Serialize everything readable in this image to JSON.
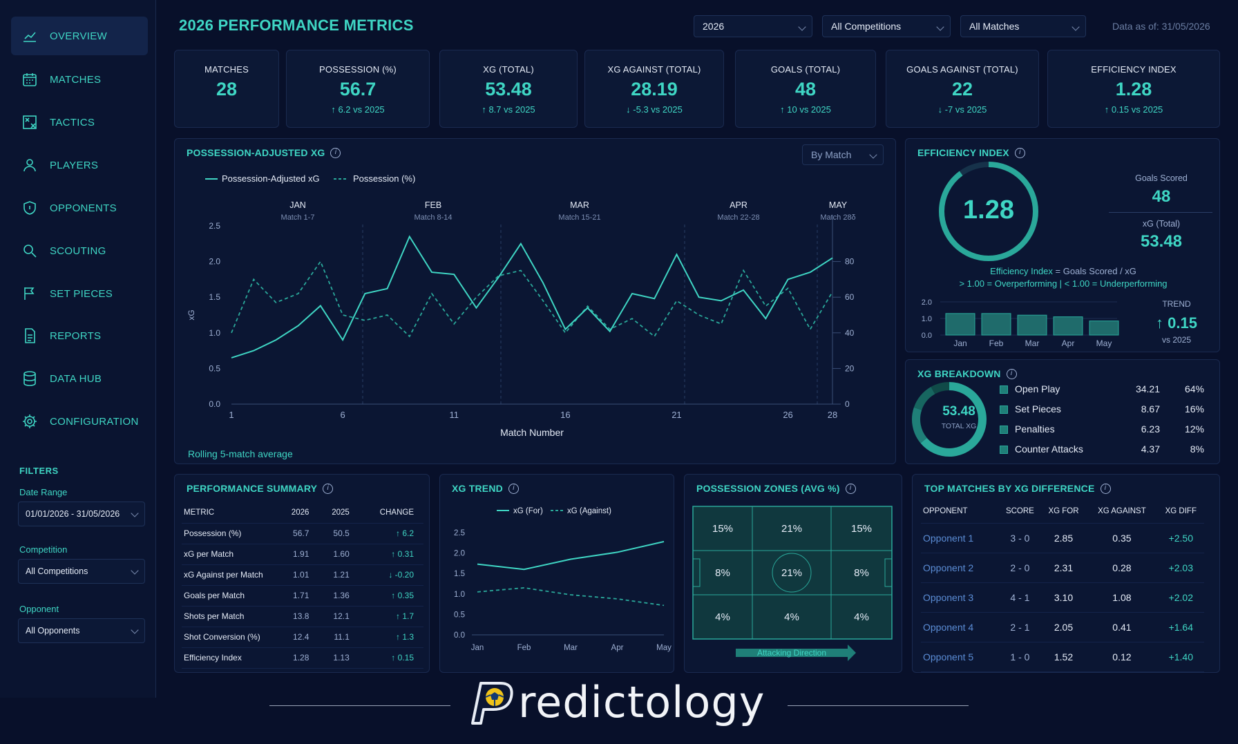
{
  "nav": [
    {
      "label": "OVERVIEW",
      "icon": "line-chart-icon",
      "active": true
    },
    {
      "label": "MATCHES",
      "icon": "calendar-icon"
    },
    {
      "label": "TACTICS",
      "icon": "tactics-board-icon"
    },
    {
      "label": "PLAYERS",
      "icon": "person-icon"
    },
    {
      "label": "OPPONENTS",
      "icon": "shield-icon"
    },
    {
      "label": "SCOUTING",
      "icon": "search-icon"
    },
    {
      "label": "SET PIECES",
      "icon": "flag-icon"
    },
    {
      "label": "REPORTS",
      "icon": "document-icon"
    },
    {
      "label": "DATA HUB",
      "icon": "database-icon"
    },
    {
      "label": "CONFIGURATION",
      "icon": "gear-icon"
    }
  ],
  "filters": {
    "title": "FILTERS",
    "date_label": "Date Range",
    "date_value": "01/01/2026 - 31/05/2026",
    "competition_label": "Competition",
    "competition_value": "All Competitions",
    "opponent_label": "Opponent",
    "opponent_value": "All Opponents"
  },
  "header": {
    "title": "2026 PERFORMANCE METRICS",
    "year": "2026",
    "competitions": "All Competitions",
    "matches": "All Matches",
    "data_as_of": "Data as of: 31/05/2026"
  },
  "kpis": [
    {
      "label": "MATCHES",
      "value": "28",
      "delta": ""
    },
    {
      "label": "POSSESSION (%)",
      "value": "56.7",
      "delta": "↑ 6.2 vs 2025"
    },
    {
      "label": "XG (TOTAL)",
      "value": "53.48",
      "delta": "↑ 8.7 vs 2025"
    },
    {
      "label": "XG AGAINST (TOTAL)",
      "value": "28.19",
      "delta": "↓ -5.3 vs 2025"
    },
    {
      "label": "GOALS (TOTAL)",
      "value": "48",
      "delta": "↑ 10 vs 2025"
    },
    {
      "label": "GOALS AGAINST (TOTAL)",
      "value": "22",
      "delta": "↓ -7 vs 2025"
    },
    {
      "label": "EFFICIENCY INDEX",
      "value": "1.28",
      "delta": "↑ 0.15 vs 2025"
    }
  ],
  "pax": {
    "title": "POSSESSION-ADJUSTED XG",
    "dropdown": "By Match",
    "legend_a": "Possession-Adjusted xG",
    "legend_b": "Possession (%)",
    "months": [
      {
        "name": "JAN",
        "range": "Match 1-7"
      },
      {
        "name": "FEB",
        "range": "Match 8-14"
      },
      {
        "name": "MAR",
        "range": "Match 15-21"
      },
      {
        "name": "APR",
        "range": "Match 22-28"
      },
      {
        "name": "MAY",
        "range": "Match 28δ"
      }
    ],
    "ylabel": "xG",
    "xlabel": "Match Number",
    "footnote": "Rolling 5-match average"
  },
  "efficiency": {
    "title": "EFFICIENCY INDEX",
    "value": "1.28",
    "goals_label": "Goals Scored",
    "goals_value": "48",
    "xg_label": "xG (Total)",
    "xg_value": "53.48",
    "formula_a": "Efficiency Index",
    "formula_b": " = Goals Scored / xG",
    "note": "> 1.00 = Overperforming | < 1.00 = Underperforming",
    "trend_label": "TREND",
    "trend_value": "↑ 0.15",
    "trend_sub": "vs 2025"
  },
  "xg_breakdown": {
    "title": "XG BREAKDOWN",
    "total": "53.48",
    "total_label": "TOTAL XG",
    "rows": [
      {
        "label": "Open Play",
        "value": "34.21",
        "pct": "64%"
      },
      {
        "label": "Set Pieces",
        "value": "8.67",
        "pct": "16%"
      },
      {
        "label": "Penalties",
        "value": "6.23",
        "pct": "12%"
      },
      {
        "label": "Counter Attacks",
        "value": "4.37",
        "pct": "8%"
      }
    ]
  },
  "summary": {
    "title": "PERFORMANCE SUMMARY",
    "headers": [
      "METRIC",
      "2026",
      "2025",
      "CHANGE"
    ],
    "rows": [
      [
        "Possession (%)",
        "56.7",
        "50.5",
        "↑  6.2"
      ],
      [
        "xG per Match",
        "1.91",
        "1.60",
        "↑  0.31"
      ],
      [
        "xG Against per Match",
        "1.01",
        "1.21",
        "↓  -0.20"
      ],
      [
        "Goals per Match",
        "1.71",
        "1.36",
        "↑  0.35"
      ],
      [
        "Shots per Match",
        "13.8",
        "12.1",
        "↑  1.7"
      ],
      [
        "Shot Conversion (%)",
        "12.4",
        "11.1",
        "↑  1.3"
      ],
      [
        "Efficiency Index",
        "1.28",
        "1.13",
        "↑  0.15"
      ]
    ]
  },
  "xg_trend": {
    "title": "XG TREND",
    "legend_for": "xG (For)",
    "legend_against": "xG (Against)"
  },
  "zones": {
    "title": "POSSESSION ZONES (AVG %)",
    "cells": [
      "15%",
      "21%",
      "15%",
      "8%",
      "21%",
      "8%",
      "4%",
      "4%",
      "4%"
    ],
    "direction": "Attacking Direction"
  },
  "top_matches": {
    "title": "TOP MATCHES BY XG DIFFERENCE",
    "headers": [
      "OPPONENT",
      "SCORE",
      "XG FOR",
      "XG AGAINST",
      "XG DIFF"
    ],
    "rows": [
      [
        "Opponent 1",
        "3 - 0",
        "2.85",
        "0.35",
        "+2.50"
      ],
      [
        "Opponent 2",
        "2 - 0",
        "2.31",
        "0.28",
        "+2.03"
      ],
      [
        "Opponent 3",
        "4 - 1",
        "3.10",
        "1.08",
        "+2.02"
      ],
      [
        "Opponent 4",
        "2 - 1",
        "2.05",
        "0.41",
        "+1.64"
      ],
      [
        "Opponent 5",
        "1 - 0",
        "1.52",
        "0.12",
        "+1.40"
      ]
    ]
  },
  "brand": {
    "name": "redictology"
  },
  "colors": {
    "accent": "#3fd6c4",
    "background": "#08102a",
    "panel": "#0b1633"
  },
  "chart_data": [
    {
      "type": "line",
      "title": "POSSESSION-ADJUSTED XG",
      "xlabel": "Match Number",
      "ylabel": "xG",
      "x_ticks": [
        1,
        6,
        11,
        16,
        21,
        26,
        28
      ],
      "y_ticks": [
        0.0,
        0.5,
        1.0,
        1.5,
        2.0,
        2.5
      ],
      "y2_ticks": [
        0,
        20,
        40,
        60,
        80
      ],
      "ylim": [
        0,
        2.5
      ],
      "y2lim": [
        0,
        100
      ],
      "x": [
        1,
        2,
        3,
        4,
        5,
        6,
        7,
        8,
        9,
        10,
        11,
        12,
        13,
        14,
        15,
        16,
        17,
        18,
        19,
        20,
        21,
        22,
        23,
        24,
        25,
        26,
        27,
        28
      ],
      "series": [
        {
          "name": "Possession-Adjusted xG",
          "axis": "left",
          "values": [
            0.65,
            0.75,
            0.9,
            1.1,
            1.38,
            0.9,
            1.55,
            1.62,
            2.35,
            1.85,
            1.82,
            1.35,
            1.78,
            2.25,
            1.7,
            1.05,
            1.35,
            1.02,
            1.55,
            1.48,
            2.1,
            1.5,
            1.45,
            1.6,
            1.2,
            1.75,
            1.85,
            2.05
          ]
        },
        {
          "name": "Possession (%)",
          "axis": "right",
          "values": [
            40,
            70,
            57,
            62,
            80,
            50,
            47,
            50,
            38,
            62,
            45,
            60,
            72,
            75,
            58,
            40,
            55,
            42,
            48,
            38,
            58,
            50,
            45,
            75,
            55,
            65,
            42,
            63
          ]
        }
      ]
    },
    {
      "type": "bar",
      "title": "EFFICIENCY INDEX",
      "categories": [
        "Jan",
        "Feb",
        "Mar",
        "Apr",
        "May"
      ],
      "values": [
        1.3,
        1.3,
        1.2,
        1.1,
        0.85
      ],
      "y_ticks": [
        0.0,
        1.0,
        2.0
      ],
      "ylim": [
        0,
        2.0
      ]
    },
    {
      "type": "pie",
      "title": "XG BREAKDOWN",
      "categories": [
        "Open Play",
        "Set Pieces",
        "Penalties",
        "Counter Attacks"
      ],
      "values": [
        34.21,
        8.67,
        6.23,
        4.37
      ]
    },
    {
      "type": "line",
      "title": "XG TREND",
      "categories": [
        "Jan",
        "Feb",
        "Mar",
        "Apr",
        "May"
      ],
      "y_ticks": [
        0.0,
        0.5,
        1.0,
        1.5,
        2.0,
        2.5
      ],
      "ylim": [
        0,
        2.5
      ],
      "series": [
        {
          "name": "xG (For)",
          "values": [
            1.73,
            1.6,
            1.85,
            2.02,
            2.28
          ]
        },
        {
          "name": "xG (Against)",
          "values": [
            1.05,
            1.15,
            0.98,
            0.88,
            0.72
          ]
        }
      ]
    }
  ]
}
